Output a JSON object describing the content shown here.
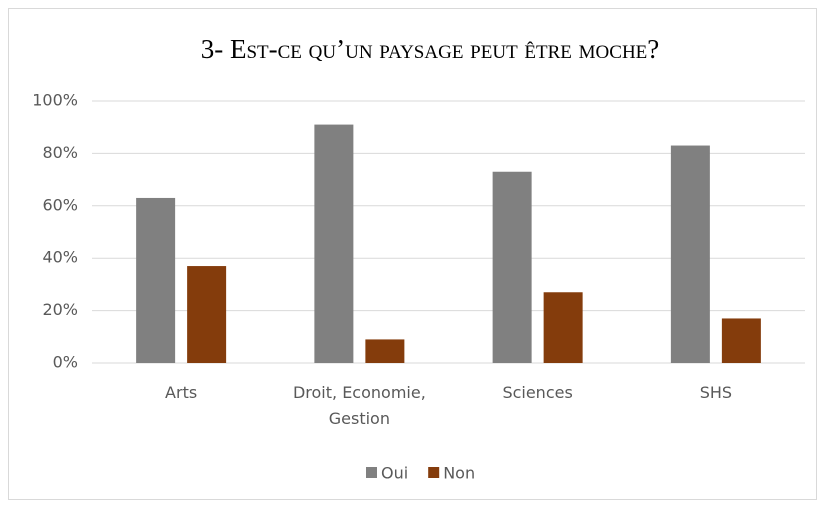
{
  "chart_data": {
    "type": "bar",
    "title": "3- Est-ce qu’un paysage peut être moche?",
    "categories": [
      "Arts",
      "Droit, Economie, Gestion",
      "Sciences",
      "SHS"
    ],
    "series": [
      {
        "name": "Oui",
        "color": "#808080",
        "values": [
          63,
          91,
          73,
          83
        ]
      },
      {
        "name": "Non",
        "color": "#843c0c",
        "values": [
          37,
          9,
          27,
          17
        ]
      }
    ],
    "ylim": [
      0,
      100
    ],
    "yticks": [
      {
        "value": 0,
        "label": "0%"
      },
      {
        "value": 20,
        "label": "20%"
      },
      {
        "value": 40,
        "label": "40%"
      },
      {
        "value": 60,
        "label": "60%"
      },
      {
        "value": 80,
        "label": "80%"
      },
      {
        "value": 100,
        "label": "100%"
      }
    ],
    "grid": true,
    "legend": "bottom"
  }
}
